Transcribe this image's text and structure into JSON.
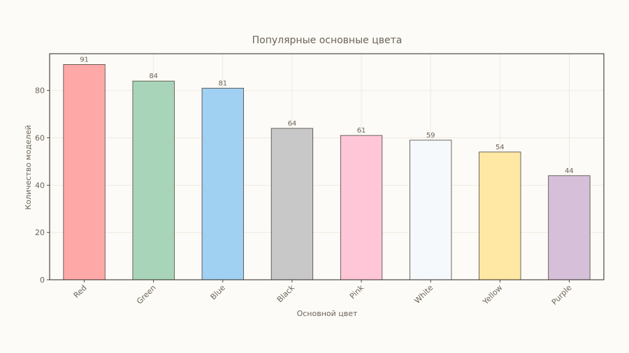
{
  "chart_data": {
    "type": "bar",
    "title": "Популярные основные цвета",
    "xlabel": "Основной цвет",
    "ylabel": "Количество моделей",
    "categories": [
      "Red",
      "Green",
      "Blue",
      "Black",
      "Pink",
      "White",
      "Yellow",
      "Purple"
    ],
    "values": [
      91,
      84,
      81,
      64,
      61,
      59,
      54,
      44
    ],
    "colors": [
      "#ffa8a8",
      "#a8d5b9",
      "#a0d0f2",
      "#c8c8c8",
      "#ffc6d8",
      "#f6f9fc",
      "#ffe8a4",
      "#d6bfd8"
    ],
    "ylim": [
      0,
      95.55
    ],
    "yticks": [
      0,
      20,
      40,
      60,
      80
    ],
    "grid": true,
    "legend": "none"
  }
}
